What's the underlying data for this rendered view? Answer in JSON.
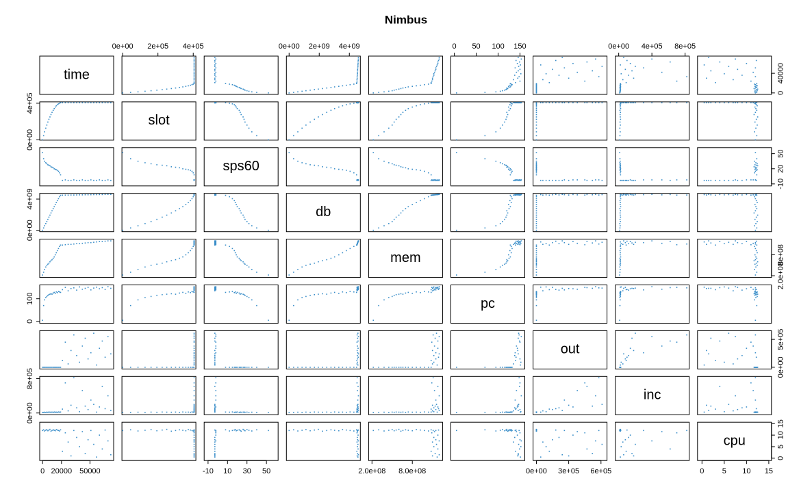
{
  "chart_data": {
    "type": "scatter-matrix",
    "title": "Nimbus",
    "color": "#3a8ec9",
    "variables": [
      {
        "name": "time",
        "lim": [
          -3000,
          75000
        ],
        "xticks": [
          0,
          20000,
          50000
        ],
        "yticks": [
          0,
          40000
        ],
        "values": [
          0,
          1100,
          2200,
          3400,
          4500,
          5600,
          6700,
          7800,
          8900,
          10000,
          11200,
          12300,
          13400,
          14500,
          15600,
          16800,
          17900,
          19000,
          21000,
          24000,
          27000,
          30000,
          33000,
          36000,
          39000,
          42000,
          45000,
          48000,
          51000,
          54000,
          57000,
          60000,
          63000,
          66000,
          69000,
          72000
        ]
      },
      {
        "name": "slot",
        "lim": [
          -4000,
          415000
        ],
        "xticks": [
          {
            "value": 0,
            "label": "0e+00"
          },
          {
            "value": 200000,
            "label": "2e+05"
          },
          {
            "value": 400000,
            "label": "4e+05"
          }
        ],
        "yticks": [
          {
            "value": 0,
            "label": "0e+00"
          },
          {
            "value": 400000,
            "label": "4e+05"
          }
        ],
        "values": [
          0,
          45000,
          87000,
          127000,
          161000,
          194000,
          224000,
          250000,
          276000,
          300000,
          322000,
          341000,
          358000,
          372000,
          384000,
          393000,
          400000,
          405000,
          405000,
          405000,
          405000,
          405000,
          405000,
          405000,
          405000,
          405000,
          405000,
          405000,
          405000,
          405000,
          405000,
          405000,
          405000,
          405000,
          405000,
          405000
        ]
      },
      {
        "name": "sps60",
        "lim": [
          -14,
          62
        ],
        "xticks": [
          -10,
          10,
          30,
          50
        ],
        "yticks": [
          -10,
          20,
          50
        ],
        "values": [
          52,
          40,
          35,
          32,
          30,
          28,
          27,
          26,
          24,
          23,
          22,
          20,
          19,
          18,
          17,
          15,
          12,
          8,
          -3,
          -2,
          -3,
          -3,
          -2,
          -3,
          -3,
          -2,
          -3,
          -3,
          -2,
          -3,
          -3,
          -2,
          -3,
          -3,
          -2,
          -3
        ]
      },
      {
        "name": "db",
        "lim": [
          -180000000,
          4730000000
        ],
        "xticks": [
          {
            "value": 0,
            "label": "0e+00"
          },
          {
            "value": 2000000000,
            "label": "2e+09"
          },
          {
            "value": 4000000000,
            "label": "4e+09"
          }
        ],
        "yticks": [
          {
            "value": 0,
            "label": "0e+00"
          },
          {
            "value": 4000000000,
            "label": "4e+09"
          }
        ],
        "values": [
          0,
          300000000,
          580000000,
          860000000,
          1120000000,
          1400000000,
          1680000000,
          1940000000,
          2220000000,
          2500000000,
          2780000000,
          3020000000,
          3300000000,
          3550000000,
          3800000000,
          4050000000,
          4300000000,
          4480000000,
          4500000000,
          4510000000,
          4510000000,
          4520000000,
          4520000000,
          4530000000,
          4540000000,
          4540000000,
          4550000000,
          4550000000,
          4560000000,
          4570000000,
          4570000000,
          4580000000,
          4580000000,
          4590000000,
          4600000000,
          4600000000
        ]
      },
      {
        "name": "mem",
        "lim": [
          150000000,
          1250000000
        ],
        "xticks": [
          {
            "value": 200000000,
            "label": "2.0e+08"
          },
          {
            "value": 800000000,
            "label": "8.0e+08"
          }
        ],
        "yticks": [
          {
            "value": 200000000,
            "label": "2.0e+08"
          },
          {
            "value": 800000000,
            "label": "8e+08"
          }
        ],
        "values": [
          220000000,
          300000000,
          380000000,
          450000000,
          500000000,
          530000000,
          560000000,
          600000000,
          630000000,
          660000000,
          700000000,
          740000000,
          800000000,
          860000000,
          920000000,
          980000000,
          1040000000,
          1080000000,
          1080000000,
          1090000000,
          1100000000,
          1100000000,
          1110000000,
          1120000000,
          1120000000,
          1130000000,
          1140000000,
          1150000000,
          1150000000,
          1160000000,
          1170000000,
          1180000000,
          1180000000,
          1190000000,
          1200000000,
          1200000000
        ]
      },
      {
        "name": "pc",
        "lim": [
          -8,
          161
        ],
        "xticks": [
          0,
          50,
          100,
          150
        ],
        "yticks": [
          0,
          100
        ],
        "values": [
          5,
          70,
          95,
          105,
          110,
          115,
          118,
          120,
          122,
          120,
          125,
          128,
          124,
          130,
          127,
          132,
          130,
          128,
          140,
          150,
          135,
          145,
          148,
          138,
          152,
          142,
          146,
          150,
          139,
          147,
          151,
          144,
          149,
          141,
          153,
          146
        ]
      },
      {
        "name": "out",
        "lim": [
          -31000,
          656000
        ],
        "xticks": [
          {
            "value": 0,
            "label": "0e+00"
          },
          {
            "value": 300000,
            "label": "3e+05"
          },
          {
            "value": 600000,
            "label": "6e+05"
          }
        ],
        "yticks": [
          {
            "value": 0,
            "label": "0e+00"
          },
          {
            "value": 500000,
            "label": "5e+05"
          }
        ],
        "values": [
          0,
          0,
          0,
          0,
          0,
          0,
          0,
          0,
          0,
          0,
          0,
          0,
          0,
          0,
          0,
          0,
          0,
          0,
          120000,
          450000,
          60000,
          300000,
          580000,
          210000,
          90000,
          380000,
          520000,
          150000,
          260000,
          610000,
          40000,
          340000,
          470000,
          180000,
          550000,
          240000
        ]
      },
      {
        "name": "inc",
        "lim": [
          -41000,
          850000
        ],
        "xticks": [
          {
            "value": 0,
            "label": "0e+00"
          },
          {
            "value": 400000,
            "label": "4e+05"
          },
          {
            "value": 800000,
            "label": "8e+05"
          }
        ],
        "yticks": [
          {
            "value": 0,
            "label": "0e+00"
          },
          {
            "value": 800000,
            "label": "8e+05"
          }
        ],
        "values": [
          12000,
          15000,
          18000,
          14000,
          20000,
          16000,
          22000,
          19000,
          17000,
          21000,
          15000,
          23000,
          18000,
          20000,
          16000,
          24000,
          19000,
          22000,
          90000,
          700000,
          50000,
          180000,
          820000,
          120000,
          30000,
          520000,
          160000,
          80000,
          300000,
          200000,
          20000,
          140000,
          620000,
          100000,
          400000,
          60000
        ]
      },
      {
        "name": "cpu",
        "lim": [
          -1,
          15.6
        ],
        "xticks": [
          0,
          5,
          10,
          15
        ],
        "yticks": [
          0,
          5,
          10,
          15
        ],
        "values": [
          12.0,
          12.3,
          11.8,
          12.1,
          12.4,
          11.9,
          12.2,
          12.5,
          11.7,
          12.0,
          12.3,
          12.1,
          11.9,
          12.4,
          12.2,
          12.0,
          11.8,
          12.3,
          3,
          11,
          7,
          1,
          12,
          9,
          5,
          11.5,
          2,
          8,
          12,
          6,
          0.5,
          10,
          4,
          12.2,
          7.5,
          1.5
        ]
      }
    ]
  }
}
